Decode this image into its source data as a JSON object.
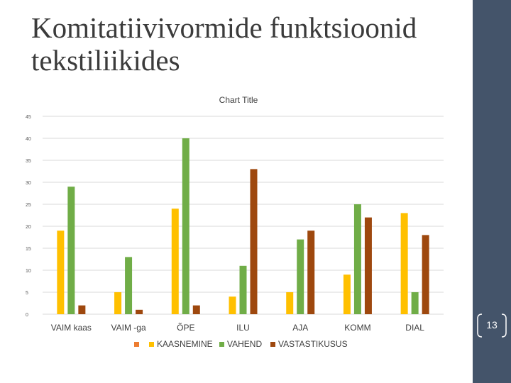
{
  "slide": {
    "title_line1": "Komitatiivivormide funktsioonid",
    "title_line2": "tekstiliikides",
    "page_number": "13"
  },
  "colors": {
    "side_bar": "#44546a",
    "grid": "#d9d9d9"
  },
  "chart_data": {
    "type": "bar",
    "title": "Chart Title",
    "categories": [
      "VAIM kaas",
      "VAIM -ga",
      "ÕPE",
      "ILU",
      "AJA",
      "KOMM",
      "DIAL"
    ],
    "series": [
      {
        "name": "",
        "color": "#ed7d31",
        "values": [
          0,
          0,
          0,
          0,
          0,
          0,
          0
        ]
      },
      {
        "name": "KAASNEMINE",
        "color": "#ffc000",
        "values": [
          19,
          5,
          24,
          4,
          5,
          9,
          23
        ]
      },
      {
        "name": "VAHEND",
        "color": "#70ad47",
        "values": [
          29,
          13,
          40,
          11,
          17,
          25,
          5
        ]
      },
      {
        "name": "VASTASTIKUSUS",
        "color": "#9e480e",
        "values": [
          2,
          1,
          2,
          33,
          19,
          22,
          18
        ]
      }
    ],
    "ylim": [
      0,
      45
    ],
    "yticks": [
      0,
      5,
      10,
      15,
      20,
      25,
      30,
      35,
      40,
      45
    ],
    "grid": true,
    "legend": "bottom"
  }
}
